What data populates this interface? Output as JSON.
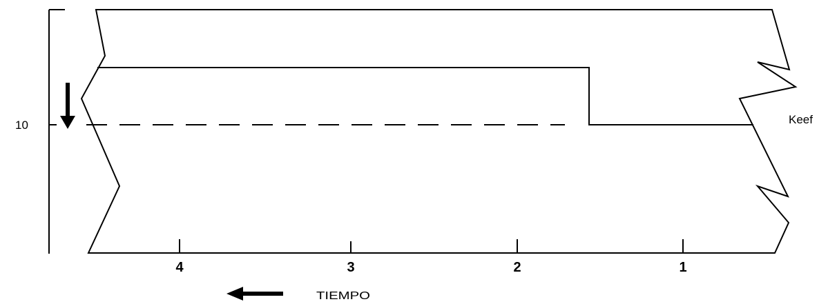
{
  "y_axis": {
    "tick_label": "10"
  },
  "x_axis": {
    "tick_labels": [
      "4",
      "3",
      "2",
      "1"
    ],
    "title": "TIEMPO"
  },
  "keef_label": "Keef",
  "colors": {
    "line": "#000000",
    "background": "#ffffff"
  }
}
